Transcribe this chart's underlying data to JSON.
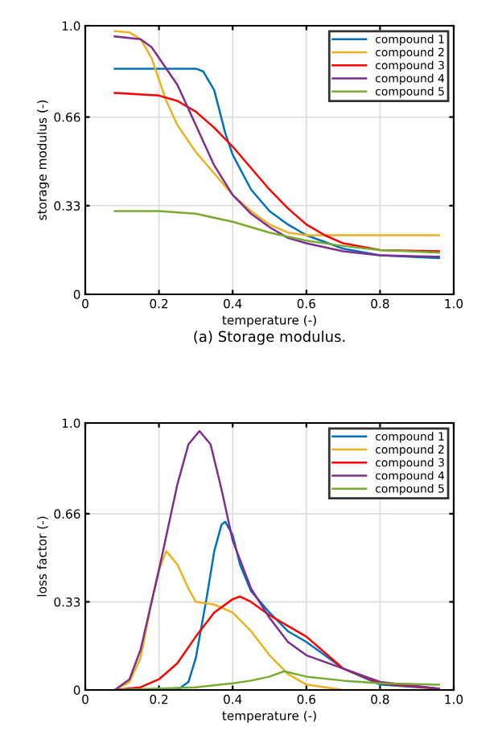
{
  "chart_data": [
    {
      "type": "line",
      "xlabel": "temperature (-)",
      "ylabel": "storage modulus (-)",
      "annotations": [
        "(a) Storage modulus."
      ],
      "xlim": [
        0,
        1
      ],
      "ylim": [
        0,
        1
      ],
      "xticks": [
        0,
        0.2,
        0.4,
        0.6,
        0.8,
        {
          "value": 1,
          "label": "1.0"
        }
      ],
      "yticks": [
        0,
        0.33,
        0.66,
        {
          "value": 1,
          "label": "1.0"
        }
      ],
      "grid": true,
      "legend": "top right",
      "line_style": "solid",
      "marker": "none",
      "series": [
        {
          "name": "compound 1",
          "color": "#0072bd",
          "x": [
            0.08,
            0.2,
            0.3,
            0.32,
            0.35,
            0.38,
            0.4,
            0.45,
            0.5,
            0.55,
            0.6,
            0.7,
            0.8,
            0.96
          ],
          "values": [
            0.84,
            0.84,
            0.84,
            0.83,
            0.76,
            0.6,
            0.52,
            0.39,
            0.31,
            0.26,
            0.22,
            0.17,
            0.145,
            0.135
          ]
        },
        {
          "name": "compound 2",
          "color": "#edb120",
          "x": [
            0.08,
            0.12,
            0.15,
            0.18,
            0.2,
            0.22,
            0.25,
            0.3,
            0.35,
            0.4,
            0.45,
            0.5,
            0.55,
            0.6,
            0.7,
            0.96
          ],
          "values": [
            0.98,
            0.975,
            0.95,
            0.88,
            0.8,
            0.72,
            0.63,
            0.53,
            0.45,
            0.37,
            0.31,
            0.26,
            0.23,
            0.22,
            0.22,
            0.22
          ]
        },
        {
          "name": "compound 3",
          "color": "#ff0000",
          "x": [
            0.08,
            0.2,
            0.25,
            0.3,
            0.35,
            0.4,
            0.45,
            0.5,
            0.55,
            0.6,
            0.65,
            0.7,
            0.8,
            0.96
          ],
          "values": [
            0.75,
            0.74,
            0.72,
            0.68,
            0.62,
            0.55,
            0.47,
            0.39,
            0.32,
            0.26,
            0.22,
            0.19,
            0.165,
            0.16
          ]
        },
        {
          "name": "compound 4",
          "color": "#7e2f8e",
          "x": [
            0.08,
            0.15,
            0.18,
            0.2,
            0.25,
            0.3,
            0.35,
            0.4,
            0.45,
            0.5,
            0.55,
            0.6,
            0.7,
            0.8,
            0.96
          ],
          "values": [
            0.96,
            0.95,
            0.92,
            0.88,
            0.78,
            0.63,
            0.48,
            0.37,
            0.3,
            0.25,
            0.21,
            0.19,
            0.16,
            0.145,
            0.14
          ]
        },
        {
          "name": "compound 5",
          "color": "#77ac30",
          "x": [
            0.08,
            0.2,
            0.3,
            0.4,
            0.45,
            0.5,
            0.6,
            0.7,
            0.8,
            0.96
          ],
          "values": [
            0.31,
            0.31,
            0.3,
            0.27,
            0.25,
            0.23,
            0.2,
            0.18,
            0.165,
            0.155
          ]
        }
      ]
    },
    {
      "type": "line",
      "xlabel": "temperature (-)",
      "ylabel": "loss factor (-)",
      "xlim": [
        0,
        1
      ],
      "ylim": [
        0,
        1
      ],
      "xticks": [
        0,
        0.2,
        0.4,
        0.6,
        0.8,
        {
          "value": 1,
          "label": "1.0"
        }
      ],
      "yticks": [
        0,
        0.33,
        0.66,
        {
          "value": 1,
          "label": "1.0"
        }
      ],
      "grid": true,
      "legend": "top right",
      "line_style": "solid",
      "marker": "none",
      "series": [
        {
          "name": "compound 1",
          "color": "#0072bd",
          "x": [
            0.08,
            0.25,
            0.28,
            0.3,
            0.33,
            0.35,
            0.37,
            0.38,
            0.4,
            0.42,
            0.45,
            0.5,
            0.55,
            0.6,
            0.65,
            0.7,
            0.8,
            0.96
          ],
          "values": [
            0,
            0,
            0.03,
            0.12,
            0.35,
            0.52,
            0.62,
            0.63,
            0.58,
            0.47,
            0.37,
            0.29,
            0.22,
            0.18,
            0.13,
            0.08,
            0.02,
            0.005
          ]
        },
        {
          "name": "compound 2",
          "color": "#edb120",
          "x": [
            0.08,
            0.12,
            0.15,
            0.18,
            0.2,
            0.22,
            0.25,
            0.28,
            0.3,
            0.35,
            0.4,
            0.45,
            0.5,
            0.55,
            0.6,
            0.7,
            0.96
          ],
          "values": [
            0,
            0.03,
            0.12,
            0.33,
            0.45,
            0.52,
            0.47,
            0.38,
            0.33,
            0.32,
            0.29,
            0.22,
            0.13,
            0.06,
            0.02,
            0,
            0
          ]
        },
        {
          "name": "compound 3",
          "color": "#ff0000",
          "x": [
            0.08,
            0.15,
            0.2,
            0.25,
            0.3,
            0.35,
            0.4,
            0.42,
            0.45,
            0.5,
            0.55,
            0.6,
            0.65,
            0.7,
            0.8,
            0.96
          ],
          "values": [
            0,
            0.01,
            0.04,
            0.1,
            0.2,
            0.29,
            0.34,
            0.35,
            0.33,
            0.28,
            0.24,
            0.2,
            0.14,
            0.08,
            0.025,
            0.005
          ]
        },
        {
          "name": "compound 4",
          "color": "#7e2f8e",
          "x": [
            0.08,
            0.12,
            0.15,
            0.2,
            0.25,
            0.28,
            0.31,
            0.34,
            0.37,
            0.4,
            0.45,
            0.5,
            0.55,
            0.6,
            0.7,
            0.8,
            0.96
          ],
          "values": [
            0,
            0.04,
            0.15,
            0.45,
            0.77,
            0.92,
            0.97,
            0.92,
            0.75,
            0.56,
            0.38,
            0.27,
            0.18,
            0.13,
            0.08,
            0.03,
            0.005
          ]
        },
        {
          "name": "compound 5",
          "color": "#77ac30",
          "x": [
            0.08,
            0.2,
            0.3,
            0.4,
            0.45,
            0.5,
            0.54,
            0.6,
            0.7,
            0.8,
            0.96
          ],
          "values": [
            0,
            0.005,
            0.01,
            0.025,
            0.035,
            0.05,
            0.07,
            0.05,
            0.035,
            0.025,
            0.02
          ]
        }
      ]
    }
  ]
}
